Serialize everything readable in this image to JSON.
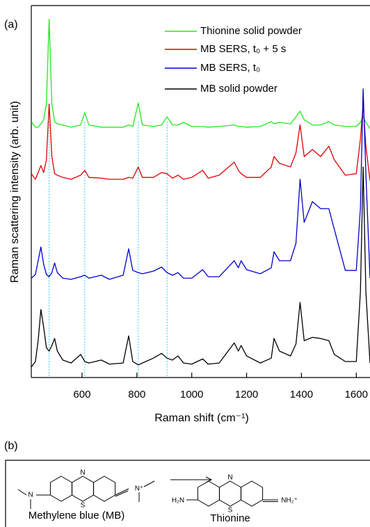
{
  "chart_data": {
    "type": "line",
    "panel_label": "(a)",
    "xlabel": "Raman shift (cm⁻¹)",
    "ylabel": "Raman scattering intensity (arb. unit)",
    "xlim": [
      415,
      1650
    ],
    "xticks": [
      600,
      800,
      1000,
      1200,
      1400,
      1600
    ],
    "ylim": [
      0,
      100
    ],
    "legend": "upper right",
    "reference_lines": {
      "values": [
        480,
        610,
        805,
        910
      ],
      "color": "#33ccee"
    },
    "x": [
      415,
      430,
      440,
      450,
      460,
      470,
      480,
      490,
      500,
      510,
      530,
      560,
      595,
      610,
      625,
      670,
      700,
      750,
      770,
      785,
      805,
      820,
      860,
      890,
      910,
      930,
      950,
      970,
      1000,
      1040,
      1060,
      1100,
      1155,
      1170,
      1180,
      1200,
      1250,
      1290,
      1300,
      1320,
      1360,
      1380,
      1395,
      1410,
      1440,
      1470,
      1500,
      1520,
      1560,
      1600,
      1615,
      1625,
      1635,
      1650
    ],
    "series": [
      {
        "name": "Thionine solid powder",
        "color": "#22e822",
        "values": [
          68.8,
          67.3,
          67.3,
          68.2,
          69.3,
          73.5,
          96.3,
          73.5,
          68.8,
          68.2,
          67.9,
          67.3,
          67.9,
          71.2,
          67.9,
          67.3,
          67.3,
          67.3,
          67.9,
          67.5,
          73.8,
          67.9,
          67.5,
          67.9,
          70.1,
          67.9,
          67.9,
          68.6,
          67.5,
          67.5,
          67.3,
          67.5,
          67.9,
          67.5,
          67.5,
          67.3,
          67.5,
          68.8,
          68.2,
          68.6,
          68.2,
          70.1,
          71.6,
          69.3,
          67.9,
          67.9,
          68.8,
          67.9,
          67.5,
          67.5,
          68.6,
          70.1,
          68.6,
          66.9
        ]
      },
      {
        "name": "MB SERS, t₀ + 5 s",
        "color": "#dd0000",
        "values": [
          54.8,
          53.3,
          55.1,
          57.0,
          55.1,
          58.5,
          73.5,
          59.4,
          54.8,
          54.4,
          53.8,
          53.3,
          54.4,
          55.7,
          53.8,
          53.6,
          53.3,
          53.3,
          53.8,
          53.6,
          56.6,
          53.8,
          53.8,
          55.1,
          54.8,
          53.6,
          54.4,
          53.3,
          53.8,
          55.7,
          53.6,
          54.4,
          57.9,
          55.7,
          54.8,
          53.8,
          53.8,
          56.6,
          59.4,
          57.6,
          56.6,
          60.4,
          67.9,
          59.4,
          61.3,
          59.4,
          62.2,
          58.5,
          54.4,
          54.8,
          64.1,
          73.5,
          62.2,
          52.9
        ]
      },
      {
        "name": "MB SERS, t₀",
        "color": "#0000cc",
        "values": [
          26.7,
          27.7,
          31.4,
          35.1,
          30.5,
          27.7,
          27.1,
          28.2,
          30.8,
          28.2,
          26.7,
          26.4,
          27.1,
          27.5,
          26.7,
          27.5,
          26.4,
          27.5,
          34.6,
          28.8,
          28.2,
          27.9,
          28.6,
          29.7,
          28.2,
          27.5,
          28.2,
          26.7,
          26.7,
          29.0,
          27.1,
          27.1,
          31.4,
          29.5,
          31.4,
          29.0,
          27.9,
          29.5,
          33.8,
          31.4,
          31.4,
          36.1,
          53.3,
          41.7,
          47.3,
          45.4,
          45.4,
          39.8,
          28.8,
          28.8,
          45.4,
          77.6,
          54.8,
          26.7
        ]
      },
      {
        "name": "MB solid powder",
        "color": "#000000",
        "values": [
          2.8,
          4.3,
          9.9,
          18.3,
          13.6,
          8.0,
          7.1,
          8.6,
          10.5,
          7.1,
          4.7,
          3.9,
          6.2,
          4.3,
          3.9,
          4.7,
          3.6,
          3.9,
          11.2,
          4.3,
          3.4,
          3.9,
          5.2,
          6.5,
          5.2,
          4.7,
          5.8,
          3.9,
          3.6,
          5.0,
          3.6,
          3.9,
          9.3,
          7.1,
          8.6,
          5.8,
          3.9,
          5.2,
          10.5,
          7.1,
          5.8,
          9.0,
          20.2,
          9.9,
          10.8,
          10.5,
          9.9,
          6.2,
          4.3,
          4.3,
          23.0,
          56.6,
          23.0,
          3.9
        ]
      }
    ]
  },
  "scheme": {
    "panel_label": "(b)",
    "reactant": {
      "name": "Methylene blue (MB)",
      "ring_n": "N",
      "ring_s": "S",
      "left_n": "N",
      "right_n": "N⁺"
    },
    "product": {
      "name": "Thionine",
      "ring_n": "N",
      "ring_s": "S",
      "left_n": "H₂N",
      "right_n": "NH₂⁺"
    }
  }
}
